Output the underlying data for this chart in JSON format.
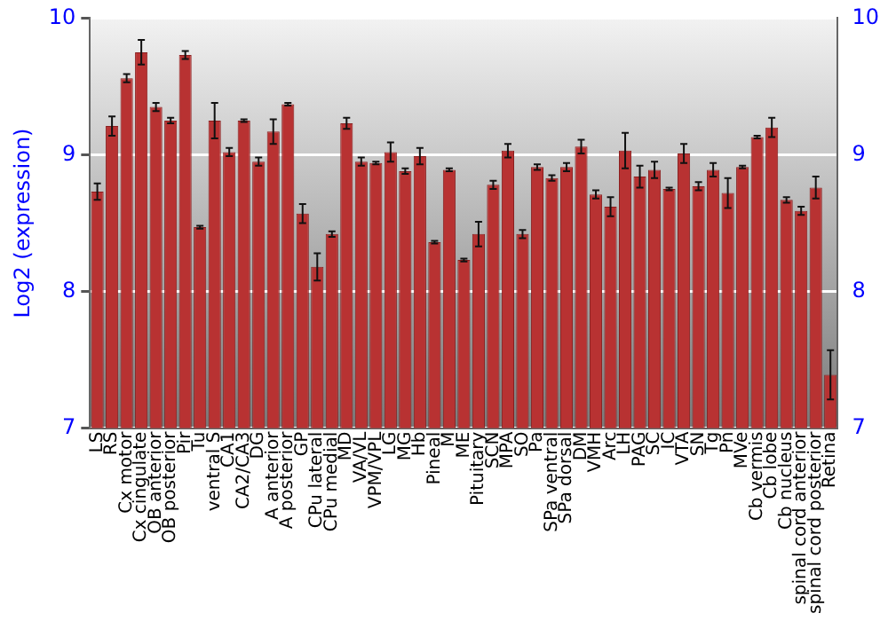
{
  "chart_data": {
    "type": "bar",
    "ylabel": "Log2 (expression)",
    "categories": [
      "LS",
      "RS",
      "Cx motor",
      "Cx cingulate",
      "OB anterior",
      "OB posterior",
      "Pir",
      "Tu",
      "ventral S",
      "CA1",
      "CA2/CA3",
      "DG",
      "A anterior",
      "A posterior",
      "GP",
      "CPu lateral",
      "CPu medial",
      "MD",
      "VA/VL",
      "VPM/VPL",
      "LG",
      "MG",
      "Hb",
      "Pineal",
      "M",
      "ME",
      "Pituitary",
      "SCN",
      "MPA",
      "SO",
      "Pa",
      "SPa ventral",
      "SPa dorsal",
      "DM",
      "VMH",
      "Arc",
      "LH",
      "PAG",
      "SC",
      "IC",
      "VTA",
      "SN",
      "Tg",
      "Pn",
      "MVe",
      "Cb vermis",
      "Cb lobe",
      "Cb nucleus",
      "spinal cord anterior",
      "spinal cord posterior",
      "Retina"
    ],
    "values": [
      8.73,
      9.21,
      9.56,
      9.75,
      9.35,
      9.25,
      9.73,
      8.47,
      9.25,
      9.02,
      9.25,
      8.95,
      9.17,
      9.37,
      8.57,
      8.18,
      8.42,
      9.23,
      8.95,
      8.94,
      9.02,
      8.88,
      8.99,
      8.36,
      8.89,
      8.23,
      8.42,
      8.78,
      9.03,
      8.42,
      8.91,
      8.83,
      8.91,
      9.06,
      8.71,
      8.62,
      9.03,
      8.84,
      8.89,
      8.75,
      9.01,
      8.77,
      8.89,
      8.72,
      8.91,
      9.13,
      9.2,
      8.67,
      8.59,
      8.76,
      7.39
    ],
    "errors": [
      0.06,
      0.07,
      0.03,
      0.09,
      0.03,
      0.02,
      0.03,
      0.01,
      0.13,
      0.03,
      0.01,
      0.03,
      0.09,
      0.01,
      0.07,
      0.1,
      0.02,
      0.04,
      0.03,
      0.01,
      0.07,
      0.02,
      0.06,
      0.01,
      0.01,
      0.01,
      0.09,
      0.03,
      0.05,
      0.03,
      0.02,
      0.02,
      0.03,
      0.05,
      0.03,
      0.07,
      0.13,
      0.08,
      0.06,
      0.01,
      0.07,
      0.03,
      0.05,
      0.11,
      0.01,
      0.01,
      0.07,
      0.02,
      0.03,
      0.08,
      0.18
    ],
    "color": "#b83232",
    "ylim": [
      7,
      10
    ],
    "yticks": [
      7,
      8,
      9,
      10
    ],
    "y2lim": [
      7,
      10
    ],
    "y2ticks": [
      7,
      8,
      9,
      10
    ],
    "grid": "y",
    "legend": false
  }
}
